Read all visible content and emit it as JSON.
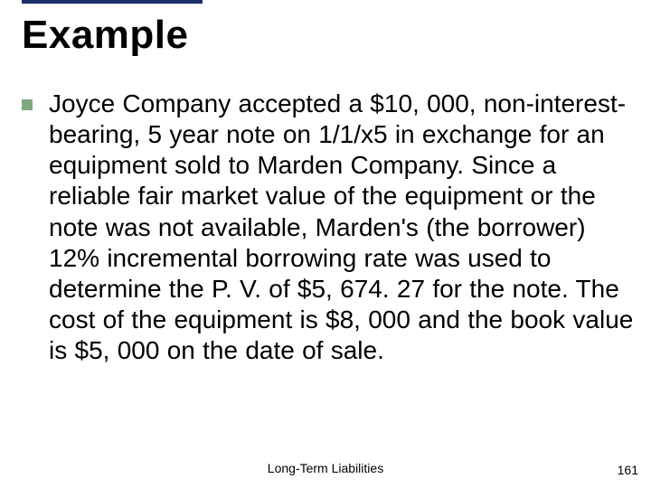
{
  "slide": {
    "accent_bar_color": "#1a2f6b",
    "title": "Example",
    "title_fontsize": 44,
    "title_color": "#000000",
    "bullet_color": "#7fa87f",
    "body_text": "Joyce Company accepted a $10, 000, non-interest-bearing, 5 year note on 1/1/x5 in exchange for an equipment sold to Marden Company. Since a reliable fair market value of the equipment or the note was not available, Marden's (the borrower) 12% incremental borrowing rate was used to determine the P. V. of $5, 674. 27 for the note. The cost of the equipment is $8, 000 and the book value is $5, 000 on the date of sale.",
    "body_fontsize": 28,
    "body_color": "#000000",
    "footer_text": "Long-Term Liabilities",
    "footer_fontsize": 14,
    "page_number": "161",
    "background_color": "#ffffff"
  }
}
